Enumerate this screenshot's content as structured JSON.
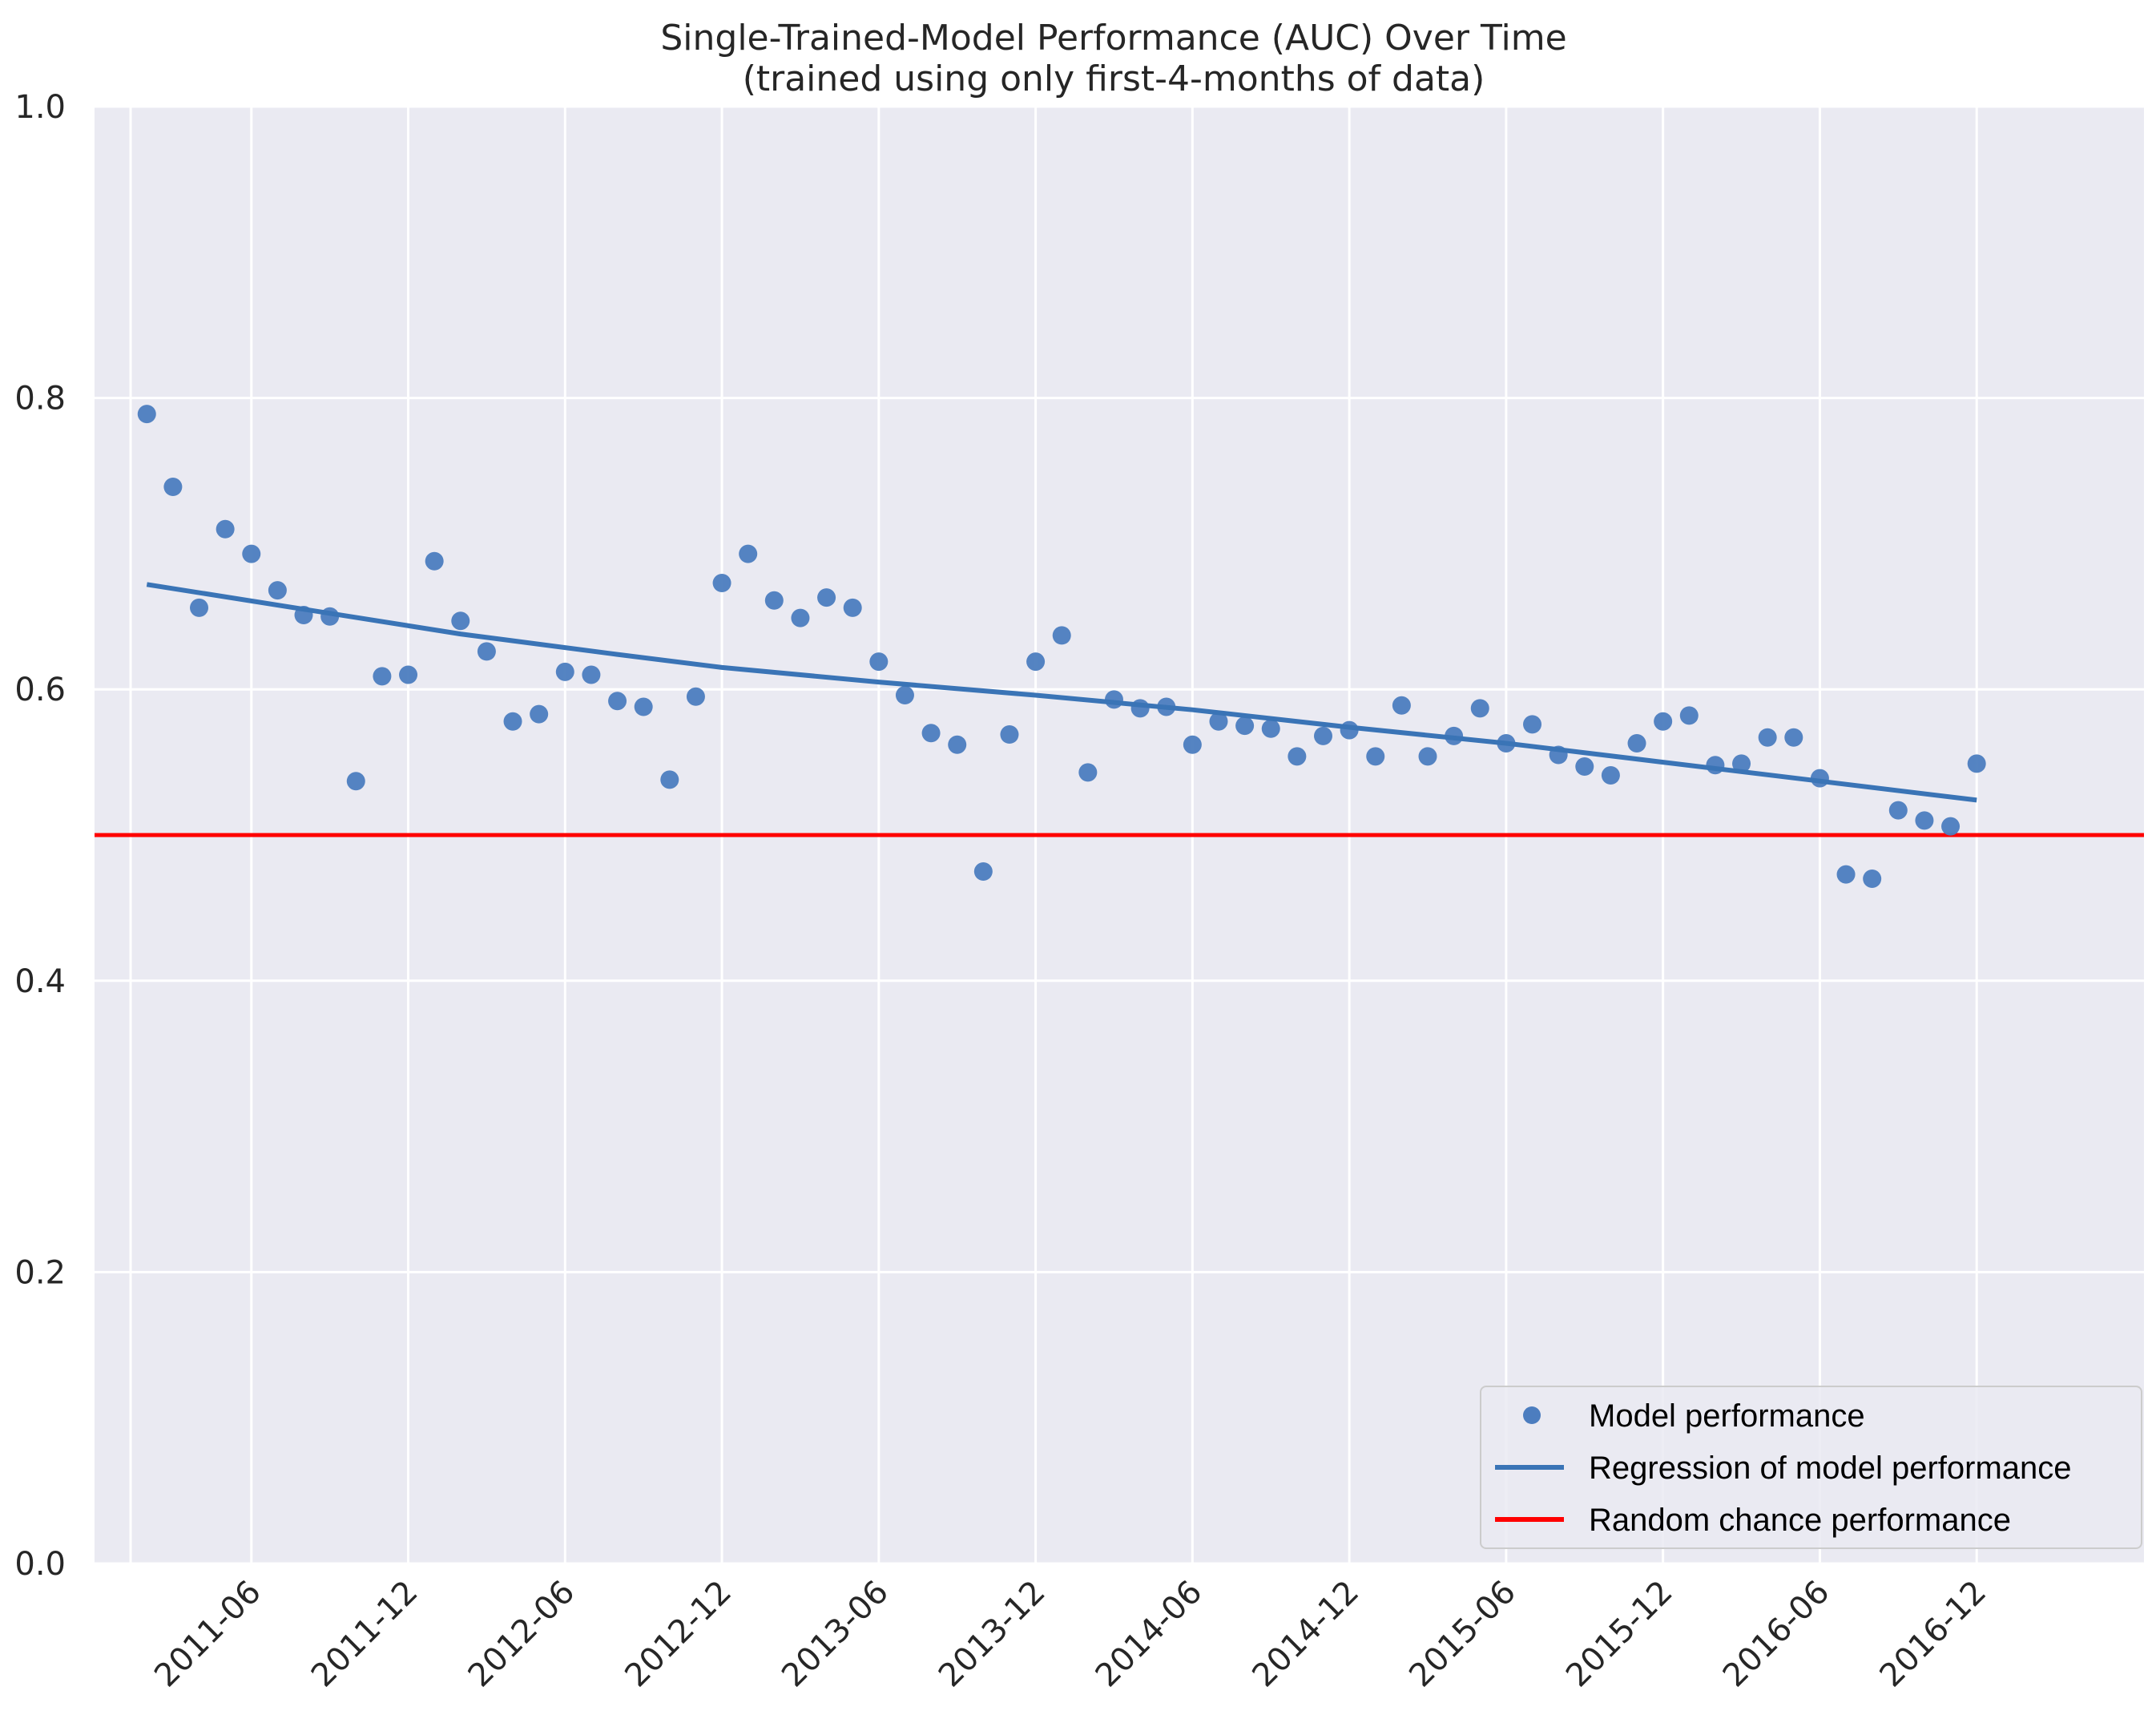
{
  "chart_data": {
    "type": "scatter",
    "title": "Single-Trained-Model Performance (AUC) Over Time",
    "subtitle": "(trained using only first-4-months of data)",
    "xlabel": "",
    "ylabel": "",
    "ylim": [
      0.0,
      1.0
    ],
    "y_ticks": [
      {
        "value": 0.0,
        "label": "0.0"
      },
      {
        "value": 0.2,
        "label": "0.2"
      },
      {
        "value": 0.4,
        "label": "0.4"
      },
      {
        "value": 0.6,
        "label": "0.6"
      },
      {
        "value": 0.8,
        "label": "0.8"
      },
      {
        "value": 1.0,
        "label": "1.0"
      }
    ],
    "x_range_months": [
      0,
      78.4
    ],
    "x_ticks": [
      {
        "month": 6.0,
        "label": "2011-06"
      },
      {
        "month": 12.0,
        "label": "2011-12"
      },
      {
        "month": 18.0,
        "label": "2012-06"
      },
      {
        "month": 24.0,
        "label": "2012-12"
      },
      {
        "month": 30.0,
        "label": "2013-06"
      },
      {
        "month": 36.0,
        "label": "2013-12"
      },
      {
        "month": 42.0,
        "label": "2014-06"
      },
      {
        "month": 48.0,
        "label": "2014-12"
      },
      {
        "month": 54.0,
        "label": "2015-06"
      },
      {
        "month": 60.0,
        "label": "2015-12"
      },
      {
        "month": 66.0,
        "label": "2016-06"
      },
      {
        "month": 72.0,
        "label": "2016-12"
      }
    ],
    "grid": true,
    "legend_position": "bottom-right",
    "colors": {
      "plot_background": "#eaeaf2",
      "grid": "#ffffff",
      "points": "#4c7dbf",
      "regression": "#3a74b6",
      "baseline": "#ff0000"
    },
    "series": [
      {
        "name": "Model performance",
        "kind": "points",
        "x_months": [
          2.0,
          3.0,
          4.0,
          5.0,
          6.0,
          7.0,
          8.0,
          9.0,
          10.0,
          11.0,
          12.0,
          13.0,
          14.0,
          15.0,
          16.0,
          17.0,
          18.0,
          19.0,
          20.0,
          21.0,
          22.0,
          23.0,
          24.0,
          25.0,
          26.0,
          27.0,
          28.0,
          29.0,
          30.0,
          31.0,
          32.0,
          33.0,
          34.0,
          35.0,
          36.0,
          37.0,
          38.0,
          39.0,
          40.0,
          41.0,
          42.0,
          43.0,
          44.0,
          45.0,
          46.0,
          47.0,
          48.0,
          49.0,
          50.0,
          51.0,
          52.0,
          53.0,
          54.0,
          55.0,
          56.0,
          57.0,
          58.0,
          59.0,
          60.0,
          61.0,
          62.0,
          63.0,
          64.0,
          65.0,
          66.0,
          67.0,
          68.0,
          69.0,
          70.0,
          71.0,
          72.0
        ],
        "values": [
          0.789,
          0.739,
          0.656,
          0.71,
          0.693,
          0.668,
          0.651,
          0.65,
          0.537,
          0.609,
          0.61,
          0.688,
          0.647,
          0.626,
          0.578,
          0.583,
          0.612,
          0.61,
          0.592,
          0.588,
          0.538,
          0.595,
          0.673,
          0.693,
          0.661,
          0.649,
          0.663,
          0.656,
          0.619,
          0.596,
          0.57,
          0.562,
          0.475,
          0.569,
          0.619,
          0.637,
          0.543,
          0.593,
          0.587,
          0.588,
          0.562,
          0.578,
          0.575,
          0.573,
          0.554,
          0.568,
          0.572,
          0.554,
          0.589,
          0.554,
          0.568,
          0.587,
          0.563,
          0.576,
          0.555,
          0.547,
          0.541,
          0.563,
          0.578,
          0.582,
          0.548,
          0.549,
          0.567,
          0.567,
          0.539,
          0.473,
          0.47,
          0.517,
          0.51,
          0.506,
          0.549
        ]
      },
      {
        "name": "Regression of model performance",
        "kind": "line",
        "x_months": [
          2.0,
          8.0,
          14.0,
          20.0,
          24.0,
          30.0,
          36.0,
          42.0,
          48.0,
          54.0,
          60.0,
          66.0,
          72.0
        ],
        "values": [
          0.672,
          0.655,
          0.638,
          0.624,
          0.615,
          0.605,
          0.596,
          0.586,
          0.574,
          0.563,
          0.55,
          0.537,
          0.524
        ]
      },
      {
        "name": "Random chance performance",
        "kind": "hline",
        "value": 0.5
      }
    ]
  }
}
